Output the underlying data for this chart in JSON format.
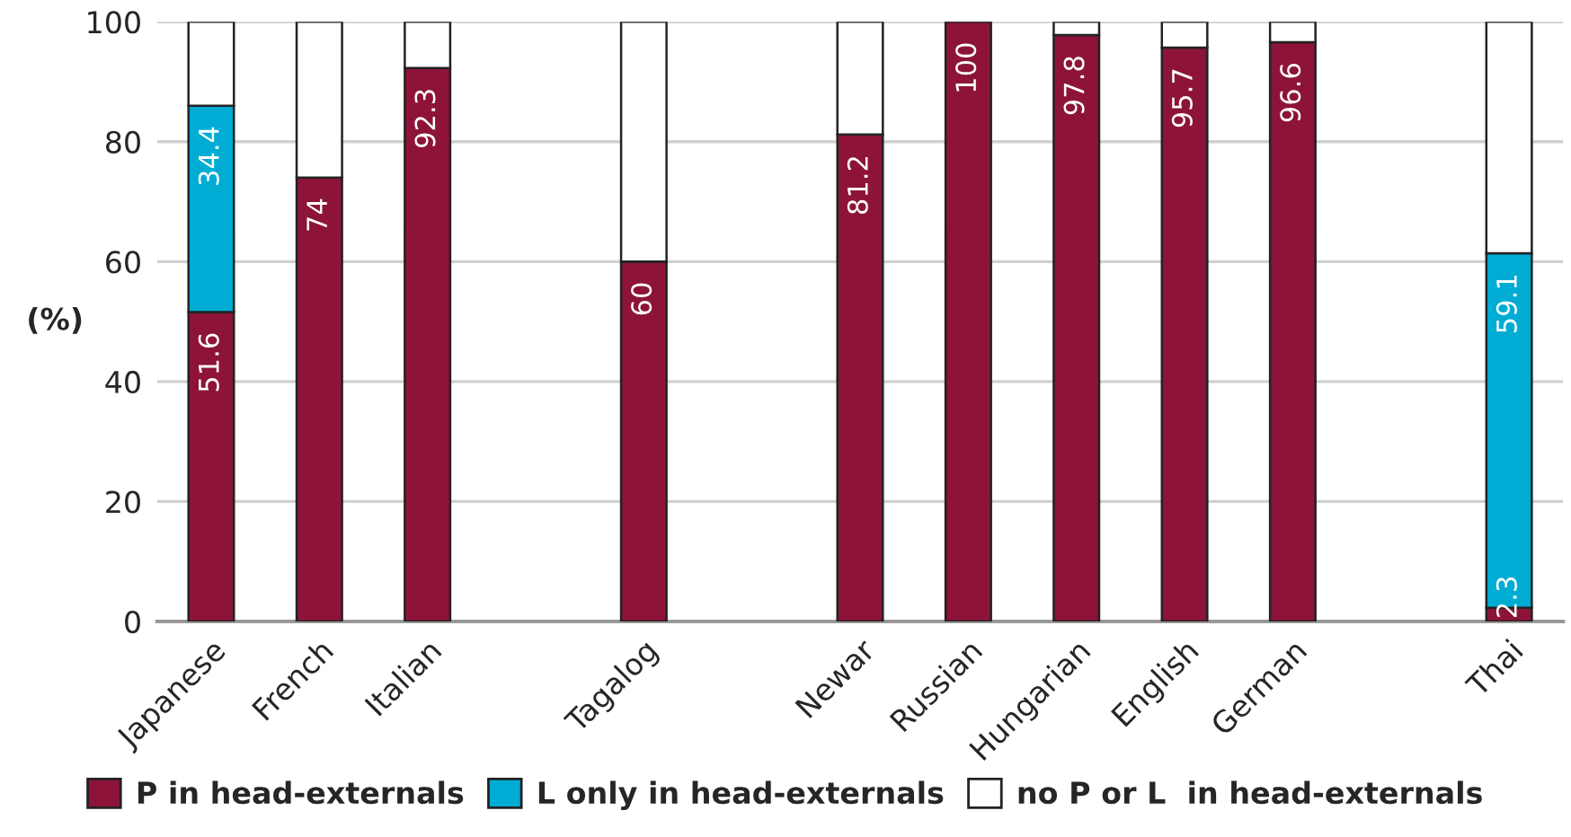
{
  "chart_data": {
    "type": "bar",
    "stacked": true,
    "ylabel": "(%)",
    "categories": [
      "Japanese",
      "French",
      "Italian",
      null,
      "Tagalog",
      null,
      "Newar",
      "Russian",
      "Hungarian",
      "English",
      "German",
      null,
      "Thai"
    ],
    "series": [
      {
        "name": "P in head-externals",
        "color": "#8d1438",
        "values": [
          51.6,
          74,
          92.3,
          null,
          60,
          null,
          81.2,
          100,
          97.8,
          95.7,
          96.6,
          null,
          2.3
        ],
        "value_labels": [
          "51.6",
          "74",
          "92.3",
          null,
          "60",
          null,
          "81.2",
          "100",
          "97.8",
          "95.7",
          "96.6",
          null,
          "2.3"
        ]
      },
      {
        "name": "L only in head-externals",
        "color": "#00acd4",
        "values": [
          34.4,
          null,
          null,
          null,
          null,
          null,
          null,
          null,
          null,
          null,
          null,
          null,
          59.1
        ],
        "value_labels": [
          "34.4",
          null,
          null,
          null,
          null,
          null,
          null,
          null,
          null,
          null,
          null,
          null,
          "59.1"
        ]
      },
      {
        "name": "no P or L  in head-externals",
        "color": "#ffffff",
        "values": [
          14.0,
          26,
          7.7,
          null,
          40,
          null,
          18.8,
          null,
          2.2,
          4.3,
          3.4,
          null,
          38.6
        ]
      }
    ],
    "ylim": [
      0,
      100
    ],
    "yticks": [
      0,
      20,
      40,
      60,
      80,
      100
    ],
    "grid": "y",
    "legend": "bottom"
  }
}
